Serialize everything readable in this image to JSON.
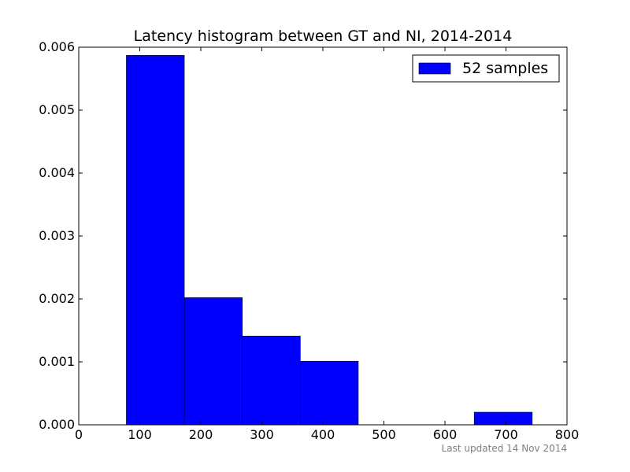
{
  "chart_data": {
    "type": "bar",
    "title": "Latency histogram between GT and NI, 2014-2014",
    "xlabel": "",
    "ylabel": "",
    "xlim": [
      0,
      800
    ],
    "ylim": [
      0,
      0.006
    ],
    "x_ticks": [
      "0",
      "100",
      "200",
      "300",
      "400",
      "500",
      "600",
      "700",
      "800"
    ],
    "y_ticks": [
      "0.000",
      "0.001",
      "0.002",
      "0.003",
      "0.004",
      "0.005",
      "0.006"
    ],
    "bins": [
      {
        "start": 78,
        "end": 173,
        "value": 0.00587
      },
      {
        "start": 173,
        "end": 268,
        "value": 0.00202
      },
      {
        "start": 268,
        "end": 363,
        "value": 0.00141
      },
      {
        "start": 363,
        "end": 458,
        "value": 0.00101
      },
      {
        "start": 458,
        "end": 553,
        "value": 0.0
      },
      {
        "start": 553,
        "end": 648,
        "value": 0.0
      },
      {
        "start": 648,
        "end": 743,
        "value": 0.0002
      }
    ],
    "series": [
      {
        "name": "52 samples",
        "color": "#0000ff"
      }
    ],
    "legend": "upper right",
    "grid": false
  },
  "footer": {
    "text": "Last updated 14 Nov 2014"
  }
}
